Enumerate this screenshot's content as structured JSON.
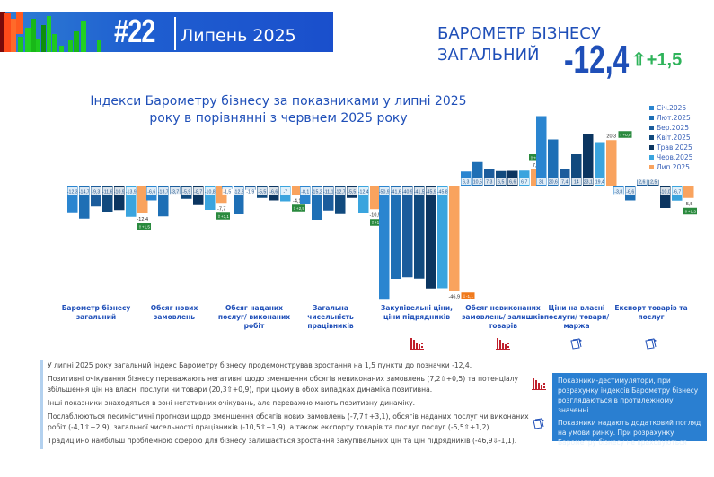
{
  "header": {
    "issue": "#22",
    "month": "Липень 2025",
    "title_line1": "БАРОМЕТР БІЗНЕСУ",
    "title_line2": "ЗАГАЛЬНИЙ",
    "value": "-12,4",
    "delta": "⇧+1,5"
  },
  "colors": {
    "series": [
      "#2a85d0",
      "#1e6fb5",
      "#1b5c9c",
      "#114a7e",
      "#0b3560",
      "#3aa4de",
      "#f9a35e"
    ],
    "delta_badge": "#2a8a3e",
    "delta_badge_negative": "#f07a1c",
    "accent": "#1f4fb8",
    "destimulator_icon": "#c0202c"
  },
  "chart_data": {
    "type": "bar",
    "title": "Індекси Барометру бізнесу за показниками у липні 2025 року в порівнянні з червнем 2025 року",
    "legend_position": "top-right",
    "series_names": [
      "Січ.2025",
      "Лют.2025",
      "Бер.2025",
      "Квіт.2025",
      "Трав.2025",
      "Черв.2025",
      "Лип.2025"
    ],
    "categories": [
      {
        "label": "Барометр бізнесу загальний",
        "values": [
          -12.3,
          -14.7,
          -9.3,
          -11.6,
          -10.9,
          -13.9,
          -12.4
        ],
        "labels": [
          "-12,3",
          "-14,7",
          "-9,3",
          "-11,6",
          "-10,9",
          "-13,9",
          "-12,4"
        ],
        "delta": "⇧+1,5",
        "icon": ""
      },
      {
        "label": "Обсяг нових замовлень",
        "values": [
          -6.6,
          -13.7,
          -3.7,
          -5.9,
          -8.7,
          -10.8,
          -7.7
        ],
        "labels": [
          "-6,6",
          "-13,7",
          "-3,7",
          "-5,9",
          "-8,7",
          "-10,8",
          "-7,7"
        ],
        "delta": "⇧+3,1",
        "icon": ""
      },
      {
        "label": "Обсяг наданих послуг/ виконаних робіт",
        "values": [
          -1.5,
          -12.8,
          -1.9,
          -5.5,
          -6.6,
          -7.0,
          -4.1
        ],
        "labels": [
          "-1,5",
          "-12,8",
          "-1,9",
          "-5,5",
          "-6,6",
          "-7",
          "-4,1"
        ],
        "delta": "⇧+2,9",
        "icon": ""
      },
      {
        "label": "Загальна чисельність працівників",
        "values": [
          -8.1,
          -15.2,
          -11.1,
          -12.7,
          -5.5,
          -12.4,
          -10.5
        ],
        "labels": [
          "-8,1",
          "-15,2",
          "-11,1",
          "-12,7",
          "-5,5",
          "-12,4",
          "-10,5"
        ],
        "delta": "⇧+1,9",
        "icon": ""
      },
      {
        "label": "Закупівельні ціни, ціни підрядників",
        "values": [
          -50.9,
          -41.6,
          -40.9,
          -41.5,
          -45.9,
          -45.8,
          -46.9
        ],
        "labels": [
          "-50,9",
          "-41,6",
          "-40,9",
          "-41,5",
          "-45,9",
          "-45,8",
          "-46,9"
        ],
        "delta": "⇩-1,1",
        "icon": "destimulator-icon"
      },
      {
        "label": "Обсяг невиконаних замовлень/ залишків товарів",
        "values": [
          6.3,
          10.5,
          7.3,
          6.5,
          6.6,
          6.7,
          7.2
        ],
        "labels": [
          "6,3",
          "10,5",
          "7,3",
          "6,5",
          "6,6",
          "6,7",
          "7,2"
        ],
        "delta": "⇧+0,5",
        "icon": "destimulator-icon"
      },
      {
        "label": "Ціни на власні послуги/ товари/ маржа",
        "values": [
          31.0,
          20.6,
          7.4,
          14.0,
          23.1,
          19.4,
          20.3
        ],
        "labels": [
          "31",
          "20,6",
          "7,4",
          "14",
          "23,1",
          "19,4",
          "20,3"
        ],
        "delta": "⇧+0,9",
        "icon": "additional-icon"
      },
      {
        "label": "Експорт товарів та послуг",
        "values": [
          -3.8,
          -6.6,
          2.6,
          2.5,
          -10.0,
          -6.7,
          -5.5
        ],
        "labels": [
          "-3,8",
          "-6,6",
          "2,6",
          "2,5",
          "-10,0",
          "-6,7",
          "-5,5"
        ],
        "delta": "⇧+1,2",
        "icon": "additional-icon"
      }
    ]
  },
  "notes": [
    "У липні 2025 року загальний індекс Барометру бізнесу продемонстрував зростання на 1,5 пункти до позначки -12,4.",
    "Позитивні очікування бізнесу переважають негативні щодо зменшення обсягів невиконаних замовлень (7,2⇧+0,5) та потенціалу збільшення цін на власні послуги чи товари (20,3⇧+0,9), при цьому в обох випадках динаміка позитивна.",
    "Інші показники знаходяться в зоні негативних очікувань, але переважно мають позитивну динаміку.",
    "Послаблюються песимістичні прогнози щодо зменшення обсягів нових замовлень (-7,7⇧+3,1), обсягів наданих послуг чи виконаних робіт (-4,1⇧+2,9), загальної чисельності працівників (-10,5⇧+1,9), а також експорту товарів та послуг послуг (-5,5⇧+1,2).",
    "Традиційно найбільш проблемною сферою для бізнесу залишається зростання закупівельних цін та цін підрядників (-46,9⇩-1,1)."
  ],
  "infobox": {
    "destimulators": "Показники-дестимулятори, при розрахунку індексів Барометру бізнесу розглядаються в протилежному значенні",
    "additional": "Показники надають додатковий погляд на умови ринку. При розрахунку Барометру бізнесу не враховуються"
  }
}
